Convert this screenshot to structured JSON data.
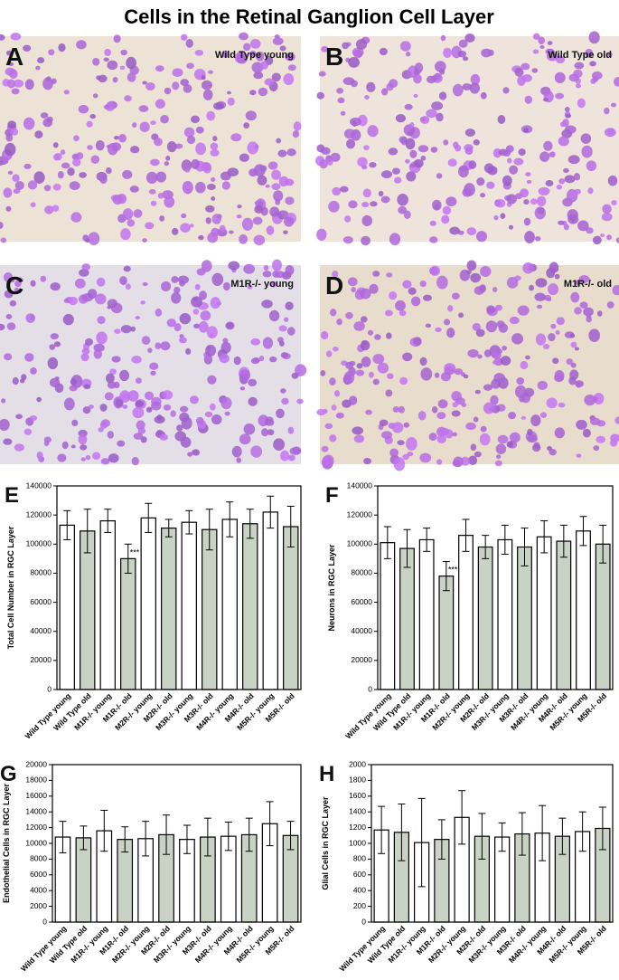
{
  "title": "Cells in the Retinal Ganglion Cell Layer",
  "panels": [
    {
      "letter": "A",
      "label": "Wild Type young"
    },
    {
      "letter": "B",
      "label": "Wild Type old"
    },
    {
      "letter": "C",
      "label": "M1R-/- young"
    },
    {
      "letter": "D",
      "label": "M1R-/- old"
    }
  ],
  "chart_data": [
    {
      "type": "bar",
      "panel_label": "E",
      "ylabel": "Total Cell Number in RGC Layer",
      "categories": [
        "Wild Type young",
        "Wild Type old",
        "M1R-/- young",
        "M1R-/- old",
        "M2R-/- young",
        "M2R-/- old",
        "M3R-/- young",
        "M3R-/- old",
        "M4R-/- young",
        "M4R-/- old",
        "M5R-/- young",
        "M5R-/- old"
      ],
      "values": [
        113000,
        109000,
        116000,
        90000,
        118000,
        111000,
        115000,
        110000,
        117000,
        114000,
        122000,
        112000
      ],
      "errors": [
        10000,
        15000,
        8000,
        10000,
        10000,
        6000,
        8000,
        14000,
        12000,
        10000,
        11000,
        14000
      ],
      "bar_colors": [
        "#ffffff",
        "#c9d3c5",
        "#ffffff",
        "#c9d3c5",
        "#ffffff",
        "#c9d3c5",
        "#ffffff",
        "#c9d3c5",
        "#ffffff",
        "#c9d3c5",
        "#ffffff",
        "#c9d3c5"
      ],
      "annotations": [
        {
          "text": "***",
          "x": "M1R-/- old"
        }
      ],
      "ylim": [
        0,
        140000
      ],
      "yticks": [
        0,
        20000,
        40000,
        60000,
        80000,
        100000,
        120000,
        140000
      ]
    },
    {
      "type": "bar",
      "panel_label": "F",
      "ylabel": "Neurons in RGC Layer",
      "categories": [
        "Wild Type young",
        "Wild Type old",
        "M1R-/- young",
        "M1R-/- old",
        "M2R-/- young",
        "M2R-/- old",
        "M3R-/- young",
        "M3R-/- old",
        "M4R-/- young",
        "M4R-/- old",
        "M5R-/- young",
        "M5R-/- old"
      ],
      "values": [
        101000,
        97000,
        103000,
        78000,
        106000,
        98000,
        103000,
        98000,
        105000,
        102000,
        109000,
        100000
      ],
      "errors": [
        11000,
        13000,
        8000,
        10000,
        11000,
        8000,
        10000,
        13000,
        11000,
        11000,
        10000,
        13000
      ],
      "bar_colors": [
        "#ffffff",
        "#c9d3c5",
        "#ffffff",
        "#c9d3c5",
        "#ffffff",
        "#c9d3c5",
        "#ffffff",
        "#c9d3c5",
        "#ffffff",
        "#c9d3c5",
        "#ffffff",
        "#c9d3c5"
      ],
      "annotations": [
        {
          "text": "***",
          "x": "M1R-/- old"
        }
      ],
      "ylim": [
        0,
        140000
      ],
      "yticks": [
        0,
        20000,
        40000,
        60000,
        80000,
        100000,
        120000,
        140000
      ]
    },
    {
      "type": "bar",
      "panel_label": "G",
      "ylabel": "Endothelial Cells in RGC Layer",
      "categories": [
        "Wild Type young",
        "Wild Type old",
        "M1R-/- young",
        "M1R-/- old",
        "M2R-/- young",
        "M2R-/- old",
        "M3R-/- young",
        "M3R-/- old",
        "M4R-/- young",
        "M4R-/- old",
        "M5R-/- young",
        "M5R-/- old"
      ],
      "values": [
        10800,
        10700,
        11600,
        10500,
        10600,
        11100,
        10500,
        10800,
        10900,
        11100,
        12500,
        11000
      ],
      "errors": [
        2000,
        1500,
        2600,
        1600,
        2200,
        2500,
        1800,
        2400,
        1800,
        2100,
        2800,
        1800
      ],
      "bar_colors": [
        "#ffffff",
        "#c9d3c5",
        "#ffffff",
        "#c9d3c5",
        "#ffffff",
        "#c9d3c5",
        "#ffffff",
        "#c9d3c5",
        "#ffffff",
        "#c9d3c5",
        "#ffffff",
        "#c9d3c5"
      ],
      "ylim": [
        0,
        20000
      ],
      "yticks": [
        0,
        2000,
        4000,
        6000,
        8000,
        10000,
        12000,
        14000,
        16000,
        18000,
        20000
      ]
    },
    {
      "type": "bar",
      "panel_label": "H",
      "ylabel": "Glial Cells in RGC Layer",
      "categories": [
        "Wild Type young",
        "Wild Type old",
        "M1R-/- young",
        "M1R-/- old",
        "M2R-/- young",
        "M2R-/- old",
        "M3R-/- young",
        "M3R-/- old",
        "M4R-/- young",
        "M4R-/- old",
        "M5R-/- young",
        "M5R-/- old"
      ],
      "values": [
        1170,
        1140,
        1010,
        1050,
        1330,
        1090,
        1080,
        1120,
        1130,
        1090,
        1150,
        1190
      ],
      "errors": [
        300,
        360,
        560,
        250,
        340,
        290,
        180,
        270,
        350,
        230,
        250,
        270
      ],
      "bar_colors": [
        "#ffffff",
        "#c9d3c5",
        "#ffffff",
        "#c9d3c5",
        "#ffffff",
        "#c9d3c5",
        "#ffffff",
        "#c9d3c5",
        "#ffffff",
        "#c9d3c5",
        "#ffffff",
        "#c9d3c5"
      ],
      "ylim": [
        0,
        2000
      ],
      "yticks": [
        0,
        200,
        400,
        600,
        800,
        1000,
        1200,
        1400,
        1600,
        1800,
        2000
      ]
    }
  ]
}
